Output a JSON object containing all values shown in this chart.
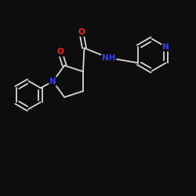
{
  "bg_color": "#0d0d0d",
  "bond_color": "#d8d8d8",
  "N_color": "#3a3aff",
  "O_color": "#ff2020",
  "lw": 1.3,
  "fs": 7.5,
  "xlim": [
    0,
    10
  ],
  "ylim": [
    0,
    10
  ],
  "figsize": [
    2.5,
    2.5
  ],
  "dpi": 100
}
